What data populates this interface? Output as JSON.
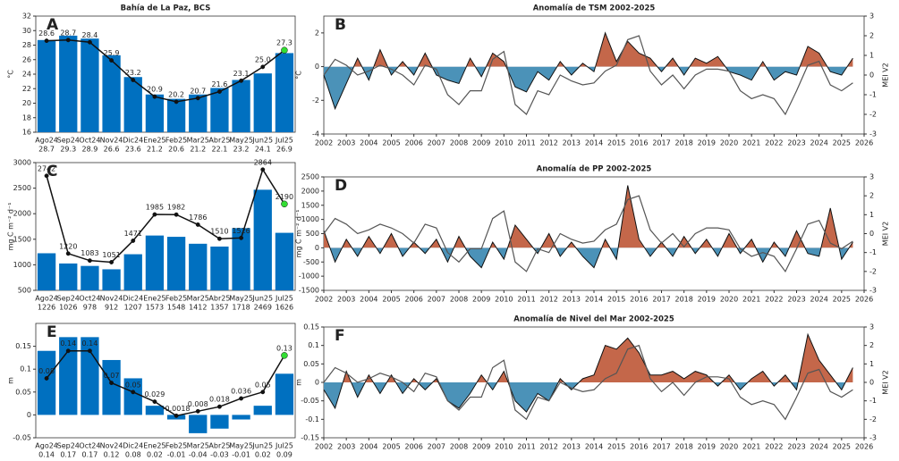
{
  "chart_data": [
    {
      "type": "bar",
      "label": "A",
      "title": "Bahía de La Paz, BCS",
      "ylabel": "°C",
      "categories": [
        "Ago24",
        "Sep24",
        "Oct24",
        "Nov24",
        "Dic24",
        "Ene25",
        "Feb25",
        "Mar25",
        "Abr25",
        "May25",
        "Jun25",
        "Jul25"
      ],
      "ylim": [
        16,
        32
      ],
      "yticks": [
        16,
        18,
        20,
        22,
        24,
        26,
        28,
        30,
        32
      ],
      "series": [
        {
          "type": "bar",
          "color": "#0070c0",
          "values": [
            28.7,
            29.3,
            28.9,
            26.6,
            23.6,
            21.2,
            20.6,
            21.2,
            22.1,
            23.2,
            24.1,
            26.9
          ]
        },
        {
          "type": "line",
          "color": "#111111",
          "highlight_color": "#33dd33",
          "values": [
            28.6,
            28.7,
            28.4,
            25.9,
            23.2,
            20.9,
            20.2,
            20.7,
            21.6,
            23.1,
            25.0,
            27.3
          ],
          "value_labels": [
            "28.6",
            "28.7",
            "28.4",
            "25.9",
            "23.2",
            "20.9",
            "20.2",
            "20.7",
            "21.6",
            "23.1",
            "25.0",
            "27.3"
          ]
        }
      ]
    },
    {
      "type": "area",
      "label": "B",
      "title": "Anomalía de TSM 2002-2025",
      "ylabel": "°C",
      "y2label": "MEI V2",
      "x": [
        2002,
        2002.5,
        2003,
        2003.5,
        2004,
        2004.5,
        2005,
        2005.5,
        2006,
        2006.5,
        2007,
        2007.5,
        2008,
        2008.5,
        2009,
        2009.5,
        2010,
        2010.5,
        2011,
        2011.5,
        2012,
        2012.5,
        2013,
        2013.5,
        2014,
        2014.5,
        2015,
        2015.5,
        2016,
        2016.5,
        2017,
        2017.5,
        2018,
        2018.5,
        2019,
        2019.5,
        2020,
        2020.5,
        2021,
        2021.5,
        2022,
        2022.5,
        2023,
        2023.5,
        2024,
        2024.5,
        2025,
        2025.5
      ],
      "xlim": [
        2002,
        2026
      ],
      "xticks": [
        2002,
        2003,
        2004,
        2005,
        2006,
        2007,
        2008,
        2009,
        2010,
        2011,
        2012,
        2013,
        2014,
        2015,
        2016,
        2017,
        2018,
        2019,
        2020,
        2021,
        2022,
        2023,
        2024,
        2025,
        2026
      ],
      "ylim": [
        -4,
        3
      ],
      "yticks": [
        -4,
        -2,
        0,
        2
      ],
      "y2lim": [
        -3,
        3
      ],
      "y2ticks": [
        -3,
        -2,
        -1,
        0,
        1,
        2,
        3
      ],
      "series": [
        {
          "type": "area",
          "positive_color": "#c4674a",
          "negative_color": "#4b92b8",
          "color": "#111111",
          "values": [
            -0.5,
            -2.5,
            -1,
            0.5,
            -0.8,
            1,
            -0.5,
            0.3,
            -0.5,
            0.8,
            -0.5,
            -0.8,
            -1,
            0.5,
            -0.6,
            0.8,
            0.3,
            -1.2,
            -1.5,
            -0.3,
            -0.8,
            0.3,
            -0.5,
            0.2,
            -0.3,
            2,
            0.3,
            1.5,
            0.8,
            0.5,
            -0.3,
            0.5,
            -0.5,
            0.5,
            0.2,
            0.6,
            -0.3,
            -0.5,
            -0.8,
            0.3,
            -0.8,
            -0.3,
            -0.5,
            1.2,
            0.8,
            -0.3,
            -0.5,
            0.5
          ]
        },
        {
          "type": "line",
          "axis": "y2",
          "color": "#555555",
          "values": [
            0,
            0.8,
            0.5,
            0,
            0.2,
            0.5,
            0.3,
            0,
            -0.5,
            0.5,
            0.3,
            -1,
            -1.5,
            -0.8,
            -0.8,
            0.8,
            1.2,
            -1.5,
            -2,
            -0.8,
            -1,
            0,
            -0.3,
            -0.5,
            -0.4,
            0.2,
            0.5,
            1.8,
            2,
            0.2,
            -0.5,
            0,
            -0.7,
            0,
            0.3,
            0.3,
            0.2,
            -0.8,
            -1.2,
            -1,
            -1.2,
            -2,
            -0.8,
            0.5,
            0.7,
            -0.5,
            -0.8,
            -0.4
          ]
        }
      ]
    },
    {
      "type": "bar",
      "label": "C",
      "ylabel": "mg C m⁻² d⁻¹",
      "categories": [
        "Ago24",
        "Sep24",
        "Oct24",
        "Nov24",
        "Dic24",
        "Ene25",
        "Feb25",
        "Mar25",
        "Abr25",
        "May25",
        "Jun25",
        "Jul25"
      ],
      "ylim": [
        500,
        3000
      ],
      "yticks": [
        500,
        1000,
        1500,
        2000,
        2500,
        3000
      ],
      "series": [
        {
          "type": "bar",
          "color": "#0070c0",
          "values": [
            1226,
            1026,
            978,
            912,
            1207,
            1573,
            1548,
            1412,
            1357,
            1718,
            2469,
            1626
          ]
        },
        {
          "type": "line",
          "color": "#111111",
          "highlight_color": "#33dd33",
          "values": [
            2742,
            1220,
            1083,
            1051,
            1471,
            1985,
            1982,
            1786,
            1510,
            1526,
            2864,
            2190
          ]
        }
      ]
    },
    {
      "type": "area",
      "label": "D",
      "title": "Anomalía de PP 2002-2025",
      "ylabel": "mg C m⁻² d⁻¹",
      "y2label": "MEI V2",
      "x": [
        2002,
        2002.5,
        2003,
        2003.5,
        2004,
        2004.5,
        2005,
        2005.5,
        2006,
        2006.5,
        2007,
        2007.5,
        2008,
        2008.5,
        2009,
        2009.5,
        2010,
        2010.5,
        2011,
        2011.5,
        2012,
        2012.5,
        2013,
        2013.5,
        2014,
        2014.5,
        2015,
        2015.5,
        2016,
        2016.5,
        2017,
        2017.5,
        2018,
        2018.5,
        2019,
        2019.5,
        2020,
        2020.5,
        2021,
        2021.5,
        2022,
        2022.5,
        2023,
        2023.5,
        2024,
        2024.5,
        2025,
        2025.5
      ],
      "xlim": [
        2002,
        2026
      ],
      "xticks": [
        2002,
        2003,
        2004,
        2005,
        2006,
        2007,
        2008,
        2009,
        2010,
        2011,
        2012,
        2013,
        2014,
        2015,
        2016,
        2017,
        2018,
        2019,
        2020,
        2021,
        2022,
        2023,
        2024,
        2025,
        2026
      ],
      "ylim": [
        -1500,
        2500
      ],
      "yticks": [
        -1500,
        -1000,
        -500,
        0,
        500,
        1000,
        1500,
        2000,
        2500
      ],
      "y2lim": [
        -3,
        3
      ],
      "y2ticks": [
        -3,
        -2,
        -1,
        0,
        1,
        2,
        3
      ],
      "series": [
        {
          "type": "area",
          "positive_color": "#c4674a",
          "negative_color": "#4b92b8",
          "color": "#111111",
          "values": [
            600,
            -500,
            300,
            -300,
            400,
            -200,
            500,
            -300,
            200,
            -200,
            300,
            -500,
            400,
            -300,
            -700,
            200,
            -400,
            800,
            300,
            -200,
            500,
            -300,
            200,
            -300,
            -700,
            300,
            -400,
            2200,
            300,
            -300,
            200,
            -300,
            400,
            -200,
            300,
            -300,
            500,
            -200,
            300,
            -500,
            200,
            -300,
            600,
            -200,
            -300,
            1400,
            -400,
            200
          ]
        },
        {
          "type": "line",
          "axis": "y2",
          "color": "#555555",
          "values": [
            0,
            0.8,
            0.5,
            0,
            0.2,
            0.5,
            0.3,
            0,
            -0.5,
            0.5,
            0.3,
            -1,
            -1.5,
            -0.8,
            -0.8,
            0.8,
            1.2,
            -1.5,
            -2,
            -0.8,
            -1,
            0,
            -0.3,
            -0.5,
            -0.4,
            0.2,
            0.5,
            1.8,
            2,
            0.2,
            -0.5,
            0,
            -0.7,
            0,
            0.3,
            0.3,
            0.2,
            -0.8,
            -1.2,
            -1,
            -1.2,
            -2,
            -0.8,
            0.5,
            0.7,
            -0.5,
            -0.8,
            -0.4
          ]
        }
      ]
    },
    {
      "type": "bar",
      "label": "E",
      "ylabel": "m",
      "categories": [
        "Ago24",
        "Sep24",
        "Oct24",
        "Nov24",
        "Dic24",
        "Ene25",
        "Feb25",
        "Mar25",
        "Abr25",
        "May25",
        "Jun25",
        "Jul25"
      ],
      "ylim": [
        -0.05,
        0.2
      ],
      "yticks": [
        -0.05,
        0,
        0.05,
        0.1,
        0.15
      ],
      "series": [
        {
          "type": "bar",
          "color": "#0070c0",
          "values": [
            0.14,
            0.17,
            0.17,
            0.12,
            0.08,
            0.02,
            -0.01,
            -0.04,
            -0.03,
            -0.01,
            0.02,
            0.09
          ]
        },
        {
          "type": "line",
          "color": "#111111",
          "highlight_color": "#33dd33",
          "values": [
            0.08,
            0.14,
            0.14,
            0.07,
            0.05,
            0.029,
            -0.0018,
            0.008,
            0.018,
            0.036,
            0.05,
            0.13
          ]
        }
      ]
    },
    {
      "type": "area",
      "label": "F",
      "title": "Anomalía de Nivel del Mar 2002-2025",
      "ylabel": "m",
      "y2label": "MEI V2",
      "x": [
        2002,
        2002.5,
        2003,
        2003.5,
        2004,
        2004.5,
        2005,
        2005.5,
        2006,
        2006.5,
        2007,
        2007.5,
        2008,
        2008.5,
        2009,
        2009.5,
        2010,
        2010.5,
        2011,
        2011.5,
        2012,
        2012.5,
        2013,
        2013.5,
        2014,
        2014.5,
        2015,
        2015.5,
        2016,
        2016.5,
        2017,
        2017.5,
        2018,
        2018.5,
        2019,
        2019.5,
        2020,
        2020.5,
        2021,
        2021.5,
        2022,
        2022.5,
        2023,
        2023.5,
        2024,
        2024.5,
        2025,
        2025.5
      ],
      "xlim": [
        2002,
        2026
      ],
      "xticks": [
        2002,
        2003,
        2004,
        2005,
        2006,
        2007,
        2008,
        2009,
        2010,
        2011,
        2012,
        2013,
        2014,
        2015,
        2016,
        2017,
        2018,
        2019,
        2020,
        2021,
        2022,
        2023,
        2024,
        2025,
        2026
      ],
      "ylim": [
        -0.15,
        0.15
      ],
      "yticks": [
        -0.15,
        -0.1,
        -0.05,
        0,
        0.05,
        0.1,
        0.15
      ],
      "y2lim": [
        -3,
        3
      ],
      "y2ticks": [
        -3,
        -2,
        -1,
        0,
        1,
        2,
        3
      ],
      "series": [
        {
          "type": "area",
          "positive_color": "#c4674a",
          "negative_color": "#4b92b8",
          "color": "#111111",
          "values": [
            -0.02,
            -0.07,
            0.03,
            -0.04,
            0.02,
            -0.03,
            0.02,
            -0.03,
            0.01,
            -0.02,
            0.01,
            -0.05,
            -0.07,
            -0.03,
            0.02,
            -0.02,
            0.03,
            -0.05,
            -0.08,
            -0.03,
            -0.05,
            0.01,
            -0.02,
            0.01,
            0.02,
            0.1,
            0.09,
            0.12,
            0.08,
            0.02,
            0.02,
            0.03,
            0.01,
            0.03,
            0.02,
            -0.01,
            0.02,
            -0.02,
            0.01,
            0.03,
            -0.01,
            0.02,
            -0.02,
            0.13,
            0.06,
            0.02,
            -0.02,
            0.04
          ]
        },
        {
          "type": "line",
          "axis": "y2",
          "color": "#555555",
          "values": [
            0,
            0.8,
            0.5,
            0,
            0.2,
            0.5,
            0.3,
            0,
            -0.5,
            0.5,
            0.3,
            -1,
            -1.5,
            -0.8,
            -0.8,
            0.8,
            1.2,
            -1.5,
            -2,
            -0.8,
            -1,
            0,
            -0.3,
            -0.5,
            -0.4,
            0.2,
            0.5,
            1.8,
            2,
            0.2,
            -0.5,
            0,
            -0.7,
            0,
            0.3,
            0.3,
            0.2,
            -0.8,
            -1.2,
            -1,
            -1.2,
            -2,
            -0.8,
            0.5,
            0.7,
            -0.5,
            -0.8,
            -0.4
          ]
        }
      ]
    }
  ]
}
